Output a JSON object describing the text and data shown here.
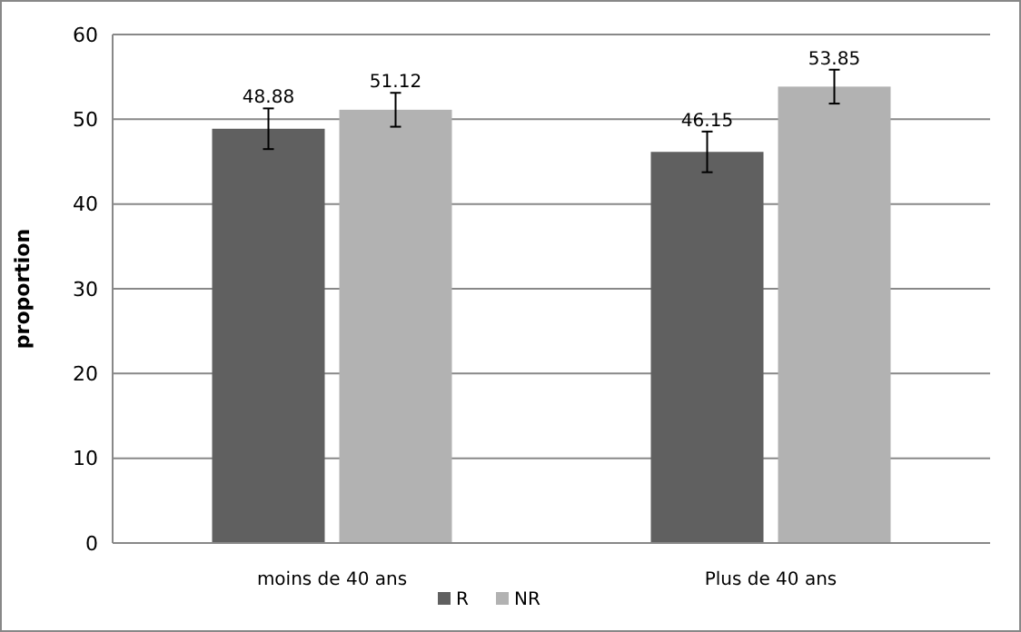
{
  "chart_data": {
    "type": "bar",
    "ylabel": "proportion",
    "categories": [
      "moins de 40 ans",
      "Plus de 40 ans"
    ],
    "series": [
      {
        "name": "R",
        "color": "#606060",
        "values": [
          48.88,
          46.15
        ],
        "errors": [
          2.4,
          2.4
        ]
      },
      {
        "name": "NR",
        "color": "#b2b2b2",
        "values": [
          51.12,
          53.85
        ],
        "errors": [
          2,
          2
        ]
      }
    ],
    "ylim": [
      0,
      60
    ],
    "yticks": [
      0,
      10,
      20,
      30,
      40,
      50,
      60
    ],
    "grid": "y",
    "legend": "bottom",
    "data_labels": true
  }
}
